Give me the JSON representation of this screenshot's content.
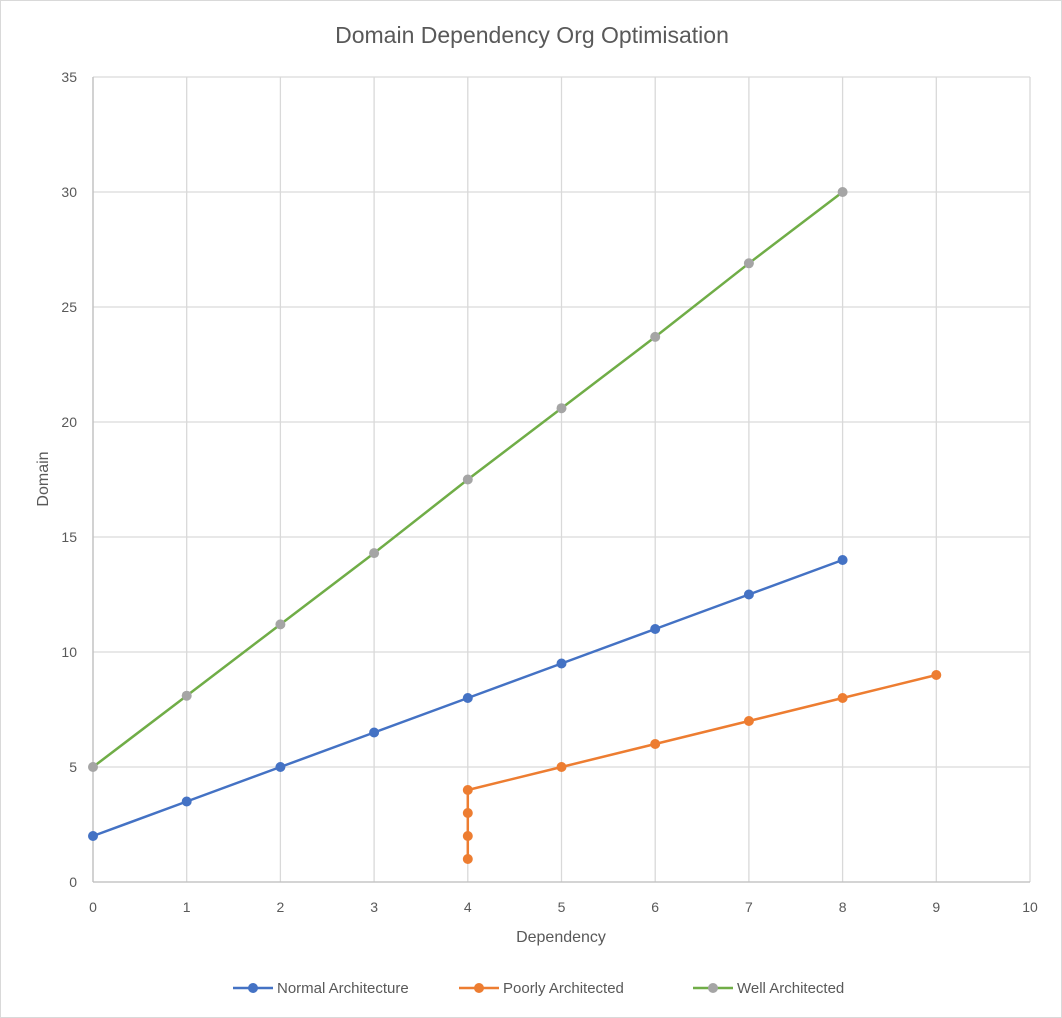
{
  "chart_data": {
    "type": "scatter",
    "title": "Domain Dependency Org Optimisation",
    "xlabel": "Dependency",
    "ylabel": "Domain",
    "xlim": [
      0,
      10
    ],
    "ylim": [
      0,
      35
    ],
    "xticks": [
      0,
      1,
      2,
      3,
      4,
      5,
      6,
      7,
      8,
      9,
      10
    ],
    "yticks": [
      0,
      5,
      10,
      15,
      20,
      25,
      30,
      35
    ],
    "grid": true,
    "legend_position": "bottom",
    "series": [
      {
        "name": "Normal Architecture",
        "line_color": "#4472C4",
        "marker_color": "#4472C4",
        "points": [
          [
            0,
            2
          ],
          [
            1,
            3.5
          ],
          [
            2,
            5
          ],
          [
            3,
            6.5
          ],
          [
            4,
            8
          ],
          [
            5,
            9.5
          ],
          [
            6,
            11
          ],
          [
            7,
            12.5
          ],
          [
            8,
            14
          ]
        ]
      },
      {
        "name": "Poorly Architected",
        "line_color": "#ED7D31",
        "marker_color": "#ED7D31",
        "points": [
          [
            4,
            1
          ],
          [
            4,
            2
          ],
          [
            4,
            3
          ],
          [
            4,
            4
          ],
          [
            5,
            5
          ],
          [
            6,
            6
          ],
          [
            7,
            7
          ],
          [
            8,
            8
          ],
          [
            9,
            9
          ]
        ]
      },
      {
        "name": "Well Architected",
        "line_color": "#70AD47",
        "marker_color": "#A5A5A5",
        "points": [
          [
            0,
            5
          ],
          [
            1,
            8.1
          ],
          [
            2,
            11.2
          ],
          [
            3,
            14.3
          ],
          [
            4,
            17.5
          ],
          [
            5,
            20.6
          ],
          [
            6,
            23.7
          ],
          [
            7,
            26.9
          ],
          [
            8,
            30
          ]
        ]
      }
    ]
  }
}
